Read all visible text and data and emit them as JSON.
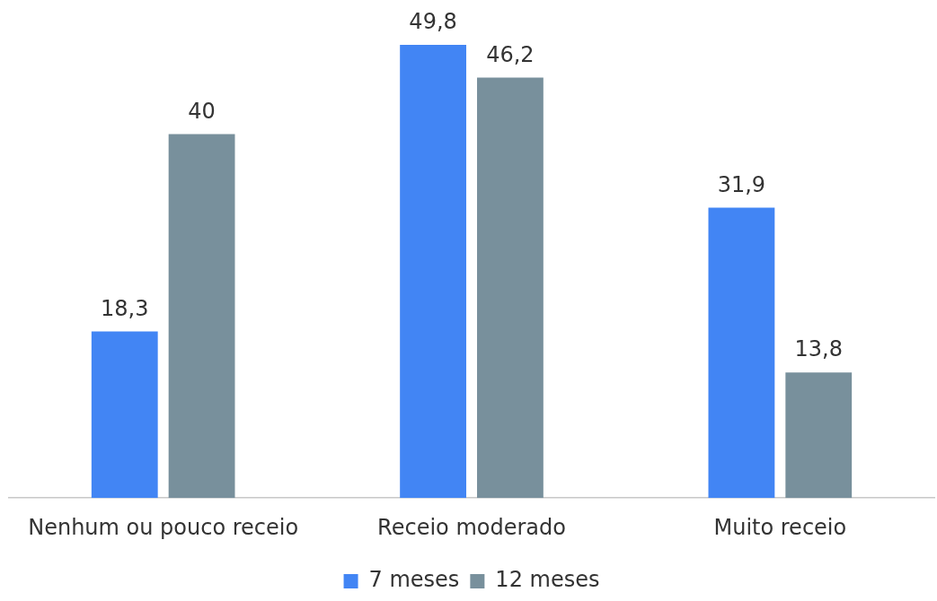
{
  "chart_data": {
    "type": "bar",
    "categories": [
      "Nenhum ou pouco receio",
      "Receio moderado",
      "Muito receio"
    ],
    "series": [
      {
        "name": "7 meses",
        "color": "#4285f4",
        "values": [
          18.3,
          49.8,
          31.9
        ],
        "value_labels": [
          "18,3",
          "49,8",
          "31,9"
        ]
      },
      {
        "name": "12 meses",
        "color": "#78909c",
        "values": [
          40,
          46.2,
          13.8
        ],
        "value_labels": [
          "40",
          "46,2",
          "13,8"
        ]
      }
    ],
    "ylim": [
      0,
      50
    ],
    "tick_labels": "x",
    "grid": false,
    "legend": "bottom"
  }
}
